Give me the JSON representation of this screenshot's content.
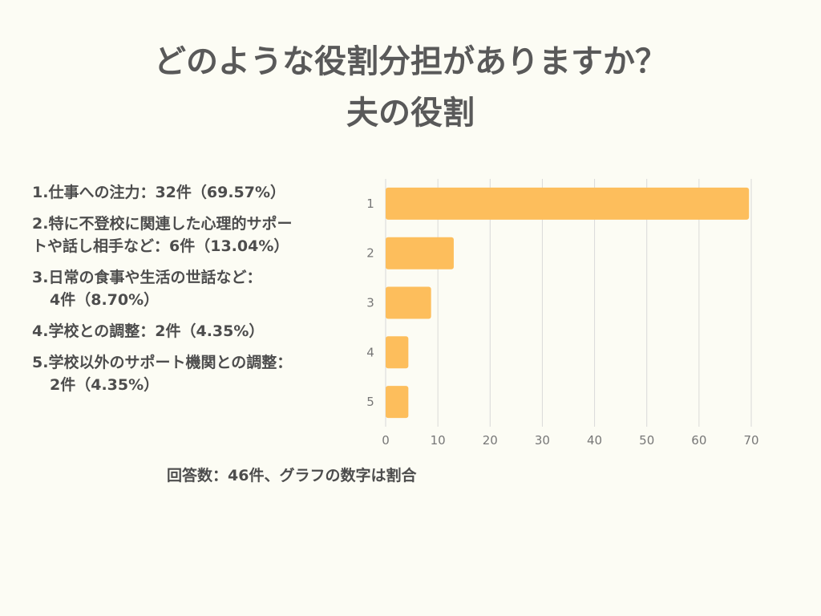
{
  "title_lines": [
    "どのような役割分担がありますか？",
    "夫の役割"
  ],
  "legend": [
    {
      "lines": [
        "1.仕事への注力：32件（69.57%）"
      ]
    },
    {
      "lines": [
        "2.特に不登校に関連した心理的サポー",
        "トや話し相手など：6件（13.04%）"
      ]
    },
    {
      "lines": [
        "3.日常の食事や生活の世話など：",
        "4件（8.70%）"
      ]
    },
    {
      "lines": [
        "4.学校との調整：2件（4.35%）"
      ]
    },
    {
      "lines": [
        "5.学校以外のサポート機関との調整：",
        "2件（4.35%）"
      ]
    }
  ],
  "footnote": "回答数：46件、グラフの数字は割合",
  "colors": {
    "bar": "#fdbe5c",
    "grid": "#d9d9d9",
    "axis_text": "#777777"
  },
  "chart_data": {
    "type": "bar",
    "orientation": "horizontal",
    "categories": [
      "1",
      "2",
      "3",
      "4",
      "5"
    ],
    "values": [
      69.57,
      13.04,
      8.7,
      4.35,
      4.35
    ],
    "xlim": [
      0,
      70
    ],
    "xticks": [
      0,
      10,
      20,
      30,
      40,
      50,
      60,
      70
    ],
    "grid": "vertical",
    "title": "",
    "xlabel": "",
    "ylabel": ""
  }
}
